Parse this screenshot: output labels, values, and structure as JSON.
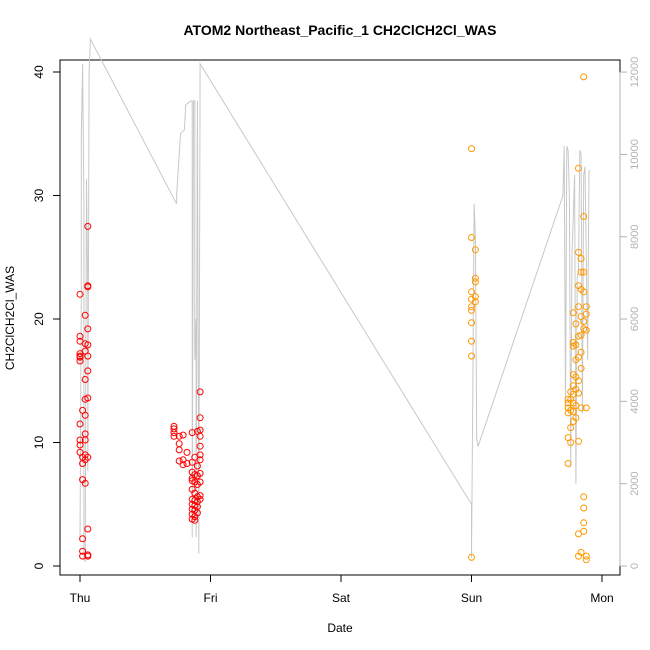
{
  "chart_data": {
    "type": "scatter",
    "title": "ATOM2 Northeast_Pacific_1 CH2ClCH2Cl_WAS",
    "xlabel": "Date",
    "ylabel": "CH2ClCH2Cl_WAS",
    "x_ticks": [
      "Thu",
      "Fri",
      "Sat",
      "Sun",
      "Mon"
    ],
    "ylim": [
      0,
      40
    ],
    "y_ticks": [
      0,
      10,
      20,
      30,
      40
    ],
    "y2lim": [
      0,
      12000
    ],
    "y2_ticks": [
      0,
      2000,
      4000,
      6000,
      8000,
      10000,
      12000
    ],
    "grid": false,
    "colors": {
      "red": "#ff0000",
      "orange": "#ff9900",
      "gray": "#c8c8c8",
      "axis": "#000000",
      "axis_right": "#b3b3b3"
    },
    "series": [
      {
        "color": "#ff0000",
        "points": [
          [
            0.0,
            22.0
          ],
          [
            0.0,
            18.6
          ],
          [
            0.0,
            18.2
          ],
          [
            0.0,
            17.2
          ],
          [
            0.0,
            17.0
          ],
          [
            0.0,
            16.9
          ],
          [
            0.0,
            16.6
          ],
          [
            0.0,
            11.5
          ],
          [
            0.0,
            10.2
          ],
          [
            0.0,
            9.8
          ],
          [
            0.0,
            9.2
          ],
          [
            0.02,
            12.6
          ],
          [
            0.02,
            8.8
          ],
          [
            0.02,
            8.3
          ],
          [
            0.02,
            7.0
          ],
          [
            0.02,
            2.2
          ],
          [
            0.02,
            1.2
          ],
          [
            0.02,
            0.8
          ],
          [
            0.04,
            20.3
          ],
          [
            0.04,
            18.0
          ],
          [
            0.04,
            17.4
          ],
          [
            0.04,
            15.1
          ],
          [
            0.04,
            13.5
          ],
          [
            0.04,
            12.2
          ],
          [
            0.04,
            10.7
          ],
          [
            0.04,
            10.2
          ],
          [
            0.04,
            9.0
          ],
          [
            0.04,
            8.6
          ],
          [
            0.04,
            6.7
          ],
          [
            0.06,
            27.5
          ],
          [
            0.06,
            22.7
          ],
          [
            0.06,
            22.6
          ],
          [
            0.06,
            19.2
          ],
          [
            0.06,
            17.9
          ],
          [
            0.06,
            17.0
          ],
          [
            0.06,
            15.8
          ],
          [
            0.06,
            13.6
          ],
          [
            0.06,
            8.8
          ],
          [
            0.06,
            3.0
          ],
          [
            0.06,
            0.9
          ],
          [
            0.06,
            0.8
          ],
          [
            0.72,
            11.3
          ],
          [
            0.72,
            11.1
          ],
          [
            0.72,
            10.8
          ],
          [
            0.72,
            10.5
          ],
          [
            0.76,
            10.5
          ],
          [
            0.76,
            9.9
          ],
          [
            0.76,
            9.4
          ],
          [
            0.76,
            8.5
          ],
          [
            0.79,
            10.6
          ],
          [
            0.79,
            8.6
          ],
          [
            0.79,
            8.2
          ],
          [
            0.82,
            9.2
          ],
          [
            0.82,
            8.3
          ],
          [
            0.86,
            10.8
          ],
          [
            0.86,
            8.4
          ],
          [
            0.86,
            7.6
          ],
          [
            0.86,
            7.1
          ],
          [
            0.86,
            6.9
          ],
          [
            0.86,
            6.2
          ],
          [
            0.86,
            5.4
          ],
          [
            0.86,
            5.0
          ],
          [
            0.86,
            4.6
          ],
          [
            0.86,
            4.2
          ],
          [
            0.86,
            3.8
          ],
          [
            0.88,
            8.8
          ],
          [
            0.88,
            7.4
          ],
          [
            0.88,
            6.8
          ],
          [
            0.88,
            5.9
          ],
          [
            0.88,
            5.3
          ],
          [
            0.88,
            4.9
          ],
          [
            0.88,
            4.5
          ],
          [
            0.88,
            4.0
          ],
          [
            0.88,
            3.7
          ],
          [
            0.9,
            10.9
          ],
          [
            0.9,
            8.1
          ],
          [
            0.9,
            7.3
          ],
          [
            0.9,
            6.6
          ],
          [
            0.9,
            5.6
          ],
          [
            0.9,
            5.2
          ],
          [
            0.9,
            4.8
          ],
          [
            0.9,
            4.3
          ],
          [
            0.92,
            14.1
          ],
          [
            0.92,
            12.0
          ],
          [
            0.92,
            11.0
          ],
          [
            0.92,
            10.5
          ],
          [
            0.92,
            9.7
          ],
          [
            0.92,
            9.0
          ],
          [
            0.92,
            8.6
          ],
          [
            0.92,
            7.5
          ],
          [
            0.92,
            6.8
          ],
          [
            0.92,
            5.7
          ],
          [
            0.92,
            5.4
          ]
        ]
      },
      {
        "color": "#ff9900",
        "points": [
          [
            3.0,
            33.8
          ],
          [
            3.0,
            26.6
          ],
          [
            3.0,
            22.2
          ],
          [
            3.0,
            21.6
          ],
          [
            3.0,
            21.0
          ],
          [
            3.0,
            20.7
          ],
          [
            3.0,
            19.7
          ],
          [
            3.0,
            18.2
          ],
          [
            3.0,
            17.0
          ],
          [
            3.0,
            0.7
          ],
          [
            3.03,
            25.6
          ],
          [
            3.03,
            23.3
          ],
          [
            3.03,
            23.0
          ],
          [
            3.03,
            21.8
          ],
          [
            3.03,
            21.4
          ],
          [
            3.74,
            13.5
          ],
          [
            3.74,
            13.2
          ],
          [
            3.74,
            12.8
          ],
          [
            3.74,
            12.4
          ],
          [
            3.74,
            10.4
          ],
          [
            3.74,
            8.3
          ],
          [
            3.76,
            14.1
          ],
          [
            3.76,
            13.5
          ],
          [
            3.76,
            12.6
          ],
          [
            3.76,
            11.2
          ],
          [
            3.76,
            10.0
          ],
          [
            3.78,
            20.5
          ],
          [
            3.78,
            18.1
          ],
          [
            3.78,
            17.8
          ],
          [
            3.78,
            15.5
          ],
          [
            3.78,
            14.6
          ],
          [
            3.78,
            13.9
          ],
          [
            3.78,
            13.2
          ],
          [
            3.78,
            12.5
          ],
          [
            3.78,
            11.7
          ],
          [
            3.8,
            19.6
          ],
          [
            3.8,
            17.9
          ],
          [
            3.8,
            16.7
          ],
          [
            3.8,
            15.3
          ],
          [
            3.8,
            14.3
          ],
          [
            3.8,
            13.0
          ],
          [
            3.8,
            12.0
          ],
          [
            3.82,
            32.2
          ],
          [
            3.82,
            25.4
          ],
          [
            3.82,
            22.7
          ],
          [
            3.82,
            21.0
          ],
          [
            3.82,
            18.6
          ],
          [
            3.82,
            16.9
          ],
          [
            3.82,
            15.0
          ],
          [
            3.82,
            14.0
          ],
          [
            3.82,
            10.1
          ],
          [
            3.82,
            2.6
          ],
          [
            3.82,
            0.8
          ],
          [
            3.84,
            24.9
          ],
          [
            3.84,
            23.8
          ],
          [
            3.84,
            22.4
          ],
          [
            3.84,
            20.2
          ],
          [
            3.84,
            18.7
          ],
          [
            3.84,
            17.3
          ],
          [
            3.84,
            16.0
          ],
          [
            3.84,
            12.8
          ],
          [
            3.84,
            1.1
          ],
          [
            3.86,
            39.6
          ],
          [
            3.86,
            28.3
          ],
          [
            3.86,
            23.8
          ],
          [
            3.86,
            22.2
          ],
          [
            3.86,
            19.8
          ],
          [
            3.86,
            19.2
          ],
          [
            3.86,
            5.6
          ],
          [
            3.86,
            4.7
          ],
          [
            3.86,
            3.5
          ],
          [
            3.86,
            2.8
          ],
          [
            3.88,
            21.0
          ],
          [
            3.88,
            20.4
          ],
          [
            3.88,
            19.1
          ],
          [
            3.88,
            12.8
          ],
          [
            3.88,
            0.8
          ],
          [
            3.88,
            0.5
          ]
        ]
      }
    ],
    "line": {
      "color": "#c8c8c8",
      "points": [
        [
          0.0,
          800
        ],
        [
          0.0,
          600
        ],
        [
          0.01,
          6500
        ],
        [
          0.01,
          10400
        ],
        [
          0.02,
          12200
        ],
        [
          0.03,
          8800
        ],
        [
          0.03,
          200
        ],
        [
          0.04,
          100
        ],
        [
          0.05,
          9400
        ],
        [
          0.06,
          6500
        ],
        [
          0.06,
          2300
        ],
        [
          0.07,
          12000
        ],
        [
          0.08,
          12800
        ],
        [
          0.74,
          8800
        ],
        [
          0.74,
          9000
        ],
        [
          0.76,
          10000
        ],
        [
          0.77,
          10500
        ],
        [
          0.8,
          10600
        ],
        [
          0.81,
          11200
        ],
        [
          0.85,
          11300
        ],
        [
          0.86,
          11300
        ],
        [
          0.86,
          700
        ],
        [
          0.87,
          11300
        ],
        [
          0.88,
          11300
        ],
        [
          0.88,
          5000
        ],
        [
          0.89,
          6000
        ],
        [
          0.89,
          700
        ],
        [
          0.9,
          11300
        ],
        [
          0.91,
          300
        ],
        [
          0.92,
          12200
        ],
        [
          0.92,
          12200
        ],
        [
          3.0,
          1500
        ],
        [
          3.0,
          200
        ],
        [
          3.01,
          4200
        ],
        [
          3.02,
          8800
        ],
        [
          3.03,
          8000
        ],
        [
          3.04,
          3100
        ],
        [
          3.05,
          2900
        ],
        [
          3.7,
          9000
        ],
        [
          3.71,
          10200
        ],
        [
          3.72,
          3800
        ],
        [
          3.73,
          10200
        ],
        [
          3.74,
          10100
        ],
        [
          3.75,
          9000
        ],
        [
          3.76,
          2400
        ],
        [
          3.77,
          7600
        ],
        [
          3.78,
          8500
        ],
        [
          3.79,
          9500
        ],
        [
          3.8,
          2000
        ],
        [
          3.81,
          7000
        ],
        [
          3.82,
          7200
        ],
        [
          3.83,
          10100
        ],
        [
          3.84,
          10000
        ],
        [
          3.85,
          3700
        ],
        [
          3.86,
          9500
        ],
        [
          3.87,
          9700
        ],
        [
          3.88,
          7500
        ],
        [
          3.89,
          5000
        ],
        [
          3.9,
          9600
        ],
        [
          3.91,
          9600
        ]
      ]
    }
  }
}
